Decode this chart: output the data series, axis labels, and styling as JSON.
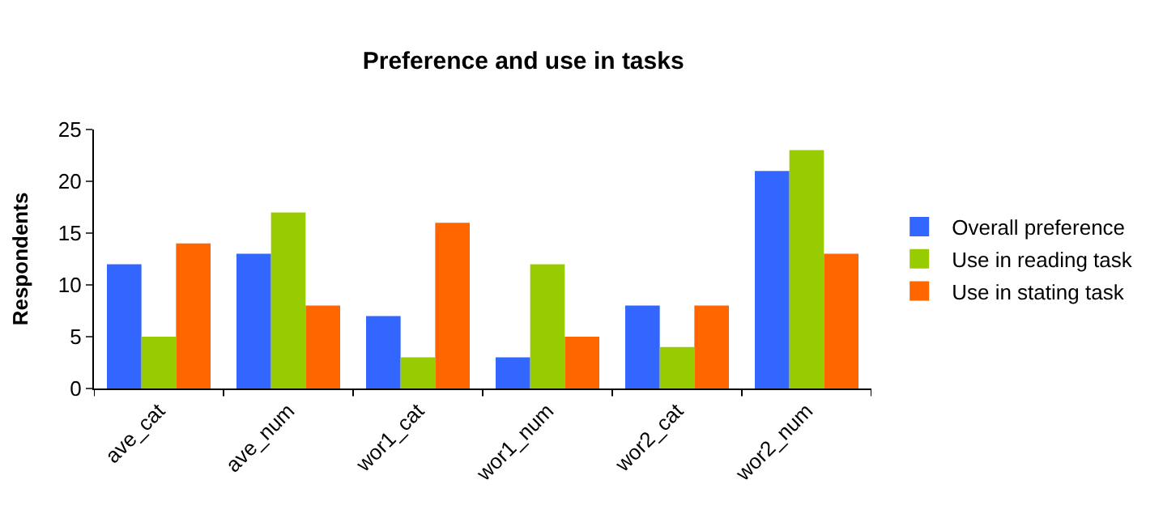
{
  "chart_data": {
    "type": "bar",
    "title": "Preference and use in tasks",
    "ylabel": "Respondents",
    "categories": [
      "ave_cat",
      "ave_num",
      "wor1_cat",
      "wor1_num",
      "wor2_cat",
      "wor2_num"
    ],
    "series": [
      {
        "name": "Overall preference",
        "color": "#3366ff",
        "values": [
          12,
          13,
          7,
          3,
          8,
          21
        ]
      },
      {
        "name": "Use in reading task",
        "color": "#99cc00",
        "values": [
          5,
          17,
          3,
          12,
          4,
          23
        ]
      },
      {
        "name": "Use in stating task",
        "color": "#ff6600",
        "values": [
          14,
          8,
          16,
          5,
          8,
          13
        ]
      }
    ],
    "ylim": [
      0,
      25
    ],
    "yticks": [
      0,
      5,
      10,
      15,
      20,
      25
    ],
    "grid": false,
    "legend": "right"
  }
}
